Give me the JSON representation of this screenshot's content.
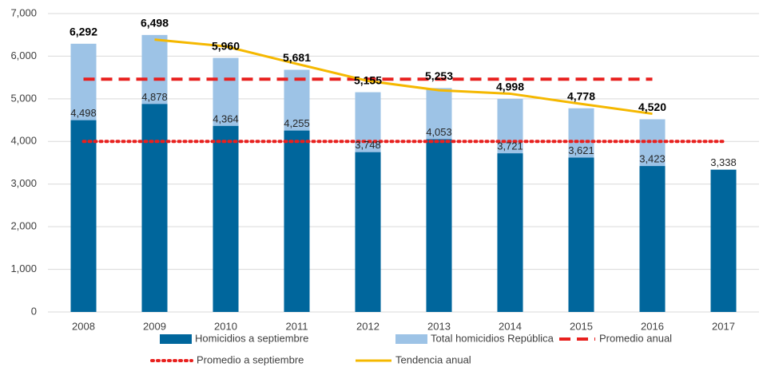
{
  "chart_data": {
    "type": "bar",
    "categories": [
      "2008",
      "2009",
      "2010",
      "2011",
      "2012",
      "2013",
      "2014",
      "2015",
      "2016",
      "2017"
    ],
    "ylim": [
      0,
      7000
    ],
    "yticks": [
      0,
      {
        "value": 1000,
        "label": "1,000"
      },
      {
        "value": 2000,
        "label": "2,000"
      },
      {
        "value": 3000,
        "label": "3,000"
      },
      {
        "value": 4000,
        "label": "4,000"
      },
      {
        "value": 5000,
        "label": "5,000"
      },
      {
        "value": 6000,
        "label": "6,000"
      },
      {
        "value": 7000,
        "label": "7,000"
      }
    ],
    "grid": true,
    "legend": "bottom",
    "series": [
      {
        "name": "Homicidios a septiembre",
        "type": "bar",
        "color": "#00669c",
        "values": [
          4498,
          4878,
          4364,
          4255,
          3748,
          4053,
          3721,
          3621,
          3423,
          3338
        ],
        "value_labels": [
          "4,498",
          "4,878",
          "4,364",
          "4,255",
          "3,748",
          "4,053",
          "3,721",
          "3,621",
          "3,423",
          "3,338"
        ]
      },
      {
        "name": "Total homicidios República",
        "type": "bar",
        "color": "#9dc3e6",
        "values": [
          6292,
          6498,
          5960,
          5681,
          5155,
          5253,
          4998,
          4778,
          4520,
          null
        ],
        "value_labels": [
          "6,292",
          "6,498",
          "5,960",
          "5,681",
          "5,155",
          "5,253",
          "4,998",
          "4,778",
          "4,520",
          null
        ]
      },
      {
        "name": "Promedio anual",
        "type": "line",
        "dash": "dashed",
        "color": "#e8201e",
        "values": [
          5460,
          5460,
          5460,
          5460,
          5460,
          5460,
          5460,
          5460,
          5460,
          null
        ]
      },
      {
        "name": "Promedio a septiembre",
        "type": "line",
        "dash": "dotted",
        "color": "#e8201e",
        "values": [
          4000,
          4000,
          4000,
          4000,
          4000,
          4000,
          4000,
          4000,
          4000,
          4000
        ]
      },
      {
        "name": "Tendencia anual",
        "type": "line",
        "dash": "solid",
        "color": "#f5b800",
        "values": [
          null,
          6390,
          6230,
          5820,
          5420,
          5200,
          5120,
          4880,
          4650,
          null
        ]
      }
    ]
  }
}
